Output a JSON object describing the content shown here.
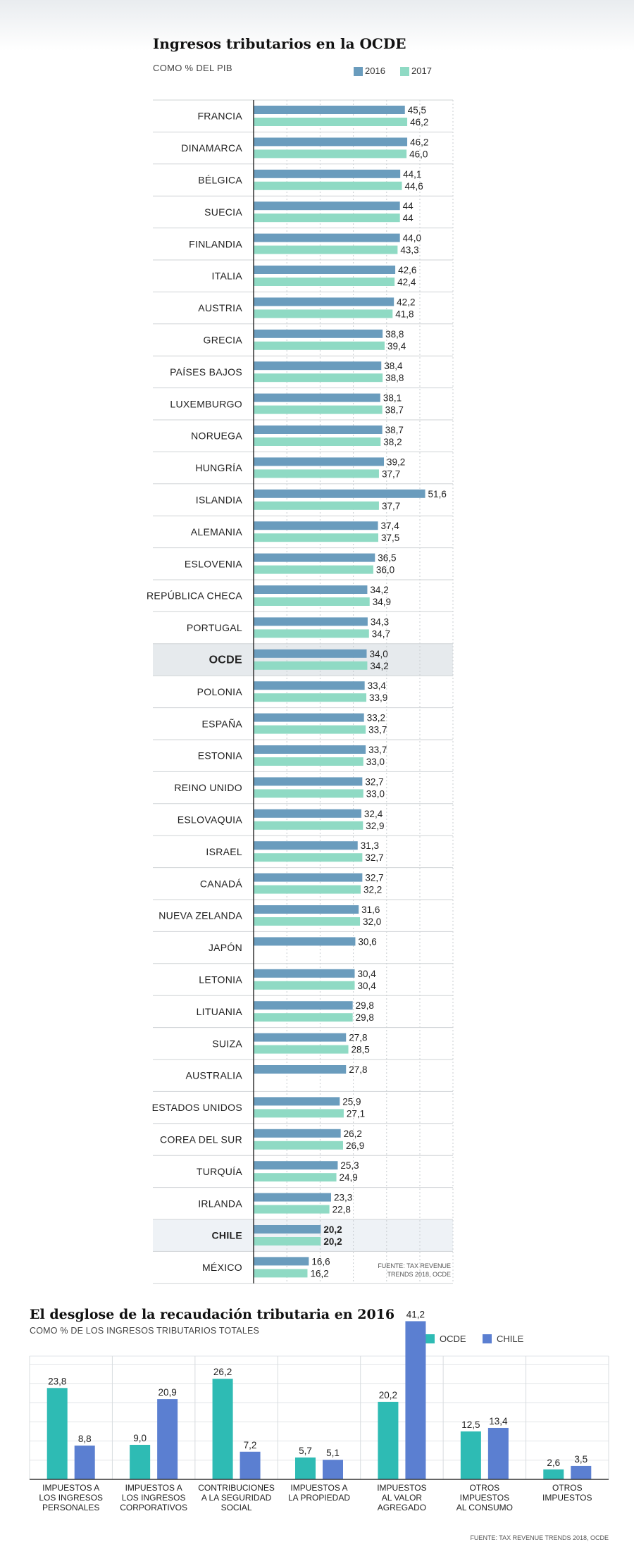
{
  "chart_data": [
    {
      "type": "bar",
      "orientation": "horizontal",
      "title": "Ingresos tributarios en la OCDE",
      "subtitle": "COMO % DEL PIB",
      "source": "FUENTE: TAX REVENUE TRENDS 2018, OCDE",
      "legend_placement": "top-right",
      "colors": {
        "2016": "#6a9cbd",
        "2017": "#8fdac4"
      },
      "categories": [
        "FRANCIA",
        "DINAMARCA",
        "BÉLGICA",
        "SUECIA",
        "FINLANDIA",
        "ITALIA",
        "AUSTRIA",
        "GRECIA",
        "PAÍSES BAJOS",
        "LUXEMBURGO",
        "NORUEGA",
        "HUNGRÍA",
        "ISLANDIA",
        "ALEMANIA",
        "ESLOVENIA",
        "REPÚBLICA CHECA",
        "PORTUGAL",
        "OCDE",
        "POLONIA",
        "ESPAÑA",
        "ESTONIA",
        "REINO UNIDO",
        "ESLOVAQUIA",
        "ISRAEL",
        "CANADÁ",
        "NUEVA ZELANDA",
        "JAPÓN",
        "LETONIA",
        "LITUANIA",
        "SUIZA",
        "AUSTRALIA",
        "ESTADOS UNIDOS",
        "COREA DEL SUR",
        "TURQUÍA",
        "IRLANDA",
        "CHILE",
        "MÉXICO"
      ],
      "highlight": [
        "OCDE",
        "CHILE"
      ],
      "series": [
        {
          "name": "2016",
          "values": [
            45.5,
            46.2,
            44.1,
            44,
            44.0,
            42.6,
            42.2,
            38.8,
            38.4,
            38.1,
            38.7,
            39.2,
            51.6,
            37.4,
            36.5,
            34.2,
            34.3,
            34.0,
            33.4,
            33.2,
            33.7,
            32.7,
            32.4,
            31.3,
            32.7,
            31.6,
            30.6,
            30.4,
            29.8,
            27.8,
            27.8,
            25.9,
            26.2,
            25.3,
            23.3,
            20.2,
            16.6
          ],
          "labels": [
            "45,5",
            "46,2",
            "44,1",
            "44",
            "44,0",
            "42,6",
            "42,2",
            "38,8",
            "38,4",
            "38,1",
            "38,7",
            "39,2",
            "51,6",
            "37,4",
            "36,5",
            "34,2",
            "34,3",
            "34,0",
            "33,4",
            "33,2",
            "33,7",
            "32,7",
            "32,4",
            "31,3",
            "32,7",
            "31,6",
            "30,6",
            "30,4",
            "29,8",
            "27,8",
            "27,8",
            "25,9",
            "26,2",
            "25,3",
            "23,3",
            "20,2",
            "16,6"
          ]
        },
        {
          "name": "2017",
          "values": [
            46.2,
            46.0,
            44.6,
            44,
            43.3,
            42.4,
            41.8,
            39.4,
            38.8,
            38.7,
            38.2,
            37.7,
            37.7,
            37.5,
            36.0,
            34.9,
            34.7,
            34.2,
            33.9,
            33.7,
            33.0,
            33.0,
            32.9,
            32.7,
            32.2,
            32.0,
            null,
            30.4,
            29.8,
            28.5,
            null,
            27.1,
            26.9,
            24.9,
            22.8,
            20.2,
            16.2
          ],
          "labels": [
            "46,2",
            "46,0",
            "44,6",
            "44",
            "43,3",
            "42,4",
            "41,8",
            "39,4",
            "38,8",
            "38,7",
            "38,2",
            "37,7",
            "37,7",
            "37,5",
            "36,0",
            "34,9",
            "34,7",
            "34,2",
            "33,9",
            "33,7",
            "33,0",
            "33,0",
            "32,9",
            "32,7",
            "32,2",
            "32,0",
            "",
            "30,4",
            "29,8",
            "28,5",
            "",
            "27,1",
            "26,9",
            "24,9",
            "22,8",
            "20,2",
            "16,2"
          ]
        }
      ]
    },
    {
      "type": "bar",
      "orientation": "vertical",
      "title": "El desglose de la recaudación tributaria en 2016",
      "subtitle": "COMO % DE LOS INGRESOS TRIBUTARIOS TOTALES",
      "source": "FUENTE: TAX REVENUE TRENDS 2018, OCDE",
      "legend_placement": "top-right",
      "colors": {
        "OCDE": "#2ebbb4",
        "CHILE": "#5b7fd1"
      },
      "categories": [
        "IMPUESTOS A\nLOS INGRESOS\nPERSONALES",
        "IMPUESTOS A\nLOS INGRESOS\nCORPORATIVOS",
        "CONTRIBUCIONES\nA LA SEGURIDAD\nSOCIAL",
        "IMPUESTOS A\nLA PROPIEDAD",
        "IMPUESTOS\nAL VALOR\nAGREGADO",
        "OTROS\nIMPUESTOS\nAL CONSUMO",
        "OTROS\nIMPUESTOS"
      ],
      "ylim": [
        0,
        45
      ],
      "series": [
        {
          "name": "OCDE",
          "values": [
            23.8,
            9.0,
            26.2,
            5.7,
            20.2,
            12.5,
            2.6
          ],
          "labels": [
            "23,8",
            "9,0",
            "26,2",
            "5,7",
            "20,2",
            "12,5",
            "2,6"
          ]
        },
        {
          "name": "CHILE",
          "values": [
            8.8,
            20.9,
            7.2,
            5.1,
            41.2,
            13.4,
            3.5
          ],
          "labels": [
            "8,8",
            "20,9",
            "7,2",
            "5,1",
            "41,2",
            "13,4",
            "3,5"
          ]
        }
      ]
    }
  ]
}
